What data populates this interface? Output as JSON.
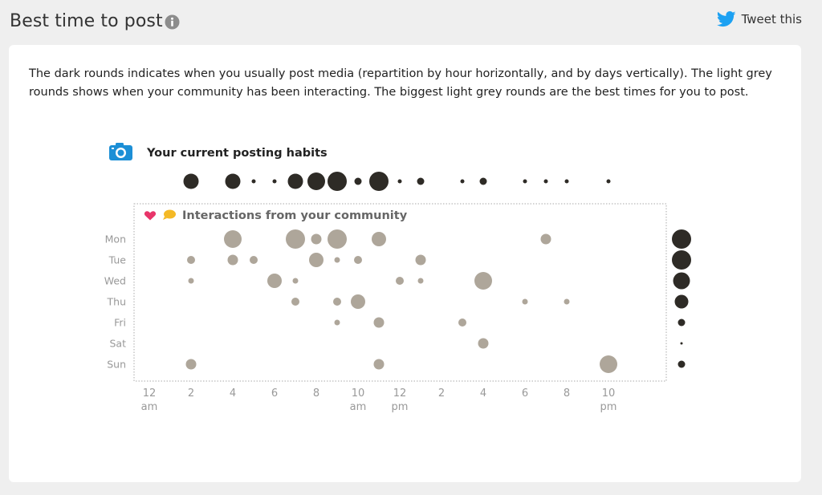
{
  "header": {
    "title": "Best time to post",
    "tweet_label": "Tweet this"
  },
  "description": "The dark rounds indicates when you usually post media (repartition by hour horizontally, and by days vertically). The light grey rounds shows when your community has been interacting. The biggest light grey rounds are the best times for you to post.",
  "colors": {
    "posting": "#2e2b26",
    "interaction": "#aea69a",
    "twitter": "#1da1f2",
    "camera": "#1c8fd6",
    "heart": "#e8356a",
    "bubble": "#f4b926"
  },
  "chart_data": {
    "type": "scatter",
    "posting_title": "Your current posting habits",
    "interaction_title": "Interactions from your community",
    "days": [
      "Mon",
      "Tue",
      "Wed",
      "Thu",
      "Fri",
      "Sat",
      "Sun"
    ],
    "hours": [
      0,
      1,
      2,
      3,
      4,
      5,
      6,
      7,
      8,
      9,
      10,
      11,
      12,
      13,
      14,
      15,
      16,
      17,
      18,
      19,
      20,
      21,
      22,
      23
    ],
    "x_ticks": [
      {
        "hour": 0,
        "label": "12",
        "sub": "am"
      },
      {
        "hour": 2,
        "label": "2",
        "sub": ""
      },
      {
        "hour": 4,
        "label": "4",
        "sub": ""
      },
      {
        "hour": 6,
        "label": "6",
        "sub": ""
      },
      {
        "hour": 8,
        "label": "8",
        "sub": ""
      },
      {
        "hour": 10,
        "label": "10",
        "sub": "am"
      },
      {
        "hour": 12,
        "label": "12",
        "sub": "pm"
      },
      {
        "hour": 14,
        "label": "2",
        "sub": ""
      },
      {
        "hour": 16,
        "label": "4",
        "sub": ""
      },
      {
        "hour": 18,
        "label": "6",
        "sub": ""
      },
      {
        "hour": 20,
        "label": "8",
        "sub": ""
      },
      {
        "hour": 22,
        "label": "10",
        "sub": "pm"
      }
    ],
    "posting_by_hour": [
      0,
      0,
      4,
      0,
      4,
      1,
      1,
      4,
      5,
      6,
      2,
      6,
      1,
      2,
      0,
      1,
      2,
      0,
      1,
      1,
      1,
      0,
      1,
      0
    ],
    "posting_by_day": [
      6,
      6,
      5,
      4,
      2,
      1,
      2
    ],
    "interactions": [
      {
        "day": "Mon",
        "hour": 4,
        "value": 5
      },
      {
        "day": "Mon",
        "hour": 7,
        "value": 6
      },
      {
        "day": "Mon",
        "hour": 8,
        "value": 3
      },
      {
        "day": "Mon",
        "hour": 9,
        "value": 6
      },
      {
        "day": "Mon",
        "hour": 11,
        "value": 4
      },
      {
        "day": "Mon",
        "hour": 19,
        "value": 3
      },
      {
        "day": "Tue",
        "hour": 2,
        "value": 2
      },
      {
        "day": "Tue",
        "hour": 4,
        "value": 3
      },
      {
        "day": "Tue",
        "hour": 5,
        "value": 2
      },
      {
        "day": "Tue",
        "hour": 8,
        "value": 4
      },
      {
        "day": "Tue",
        "hour": 9,
        "value": 1
      },
      {
        "day": "Tue",
        "hour": 10,
        "value": 2
      },
      {
        "day": "Tue",
        "hour": 13,
        "value": 3
      },
      {
        "day": "Wed",
        "hour": 2,
        "value": 1
      },
      {
        "day": "Wed",
        "hour": 6,
        "value": 4
      },
      {
        "day": "Wed",
        "hour": 7,
        "value": 1
      },
      {
        "day": "Wed",
        "hour": 12,
        "value": 2
      },
      {
        "day": "Wed",
        "hour": 13,
        "value": 1
      },
      {
        "day": "Wed",
        "hour": 16,
        "value": 5
      },
      {
        "day": "Thu",
        "hour": 7,
        "value": 2
      },
      {
        "day": "Thu",
        "hour": 9,
        "value": 2
      },
      {
        "day": "Thu",
        "hour": 10,
        "value": 4
      },
      {
        "day": "Thu",
        "hour": 18,
        "value": 1
      },
      {
        "day": "Thu",
        "hour": 20,
        "value": 1
      },
      {
        "day": "Fri",
        "hour": 9,
        "value": 1
      },
      {
        "day": "Fri",
        "hour": 11,
        "value": 3
      },
      {
        "day": "Fri",
        "hour": 15,
        "value": 2
      },
      {
        "day": "Sat",
        "hour": 16,
        "value": 3
      },
      {
        "day": "Sun",
        "hour": 2,
        "value": 3
      },
      {
        "day": "Sun",
        "hour": 11,
        "value": 3
      },
      {
        "day": "Sun",
        "hour": 22,
        "value": 5
      }
    ]
  }
}
